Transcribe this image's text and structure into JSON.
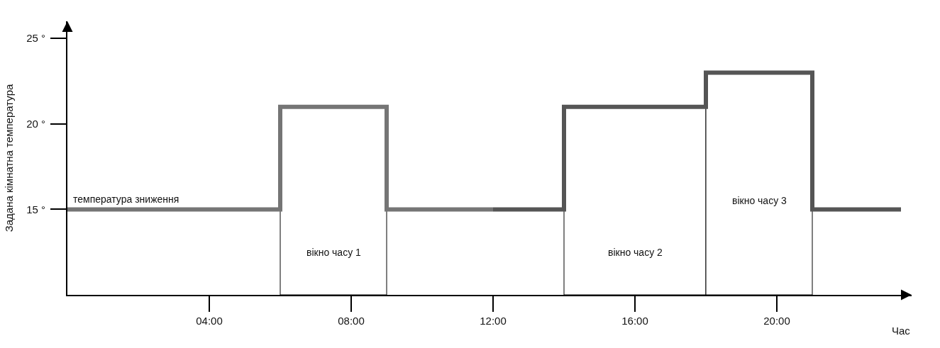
{
  "chart_data": {
    "type": "step",
    "xlabel": "Час",
    "ylabel": "Задана кімнатна температура",
    "series": [
      {
        "color": "#757575",
        "x": [
          0,
          6,
          9,
          12
        ],
        "values": [
          15,
          21,
          15,
          15
        ]
      },
      {
        "color": "#555555",
        "x": [
          12,
          14,
          18,
          21,
          23.5
        ],
        "values": [
          15,
          21,
          23,
          15,
          15
        ]
      }
    ],
    "xlim": [
      0,
      23.8
    ],
    "ylim": [
      10,
      26
    ],
    "xticks": [
      {
        "value": 4,
        "label": "04:00"
      },
      {
        "value": 8,
        "label": "08:00"
      },
      {
        "value": 12,
        "label": "12:00"
      },
      {
        "value": 16,
        "label": "16:00"
      },
      {
        "value": 20,
        "label": "20:00"
      }
    ],
    "yticks": [
      {
        "value": 15,
        "label": "15 °"
      },
      {
        "value": 20,
        "label": "20 °"
      },
      {
        "value": 25,
        "label": "25 °"
      }
    ],
    "bands": [
      {
        "axis": "x",
        "from": 6,
        "to": 9,
        "label": "вікно часу 1",
        "color": "#ffffff"
      },
      {
        "axis": "x",
        "from": 14,
        "to": 18,
        "label": "вікно часу 2",
        "color": "#ffffff"
      },
      {
        "axis": "x",
        "from": 18,
        "to": 21,
        "label": "вікно часу 3",
        "color": "#ffffff"
      }
    ],
    "annotations": [
      {
        "text": "температура зниження",
        "x": 0,
        "y": 15
      }
    ],
    "grid": false,
    "marker": "none",
    "line_style": "solid"
  }
}
